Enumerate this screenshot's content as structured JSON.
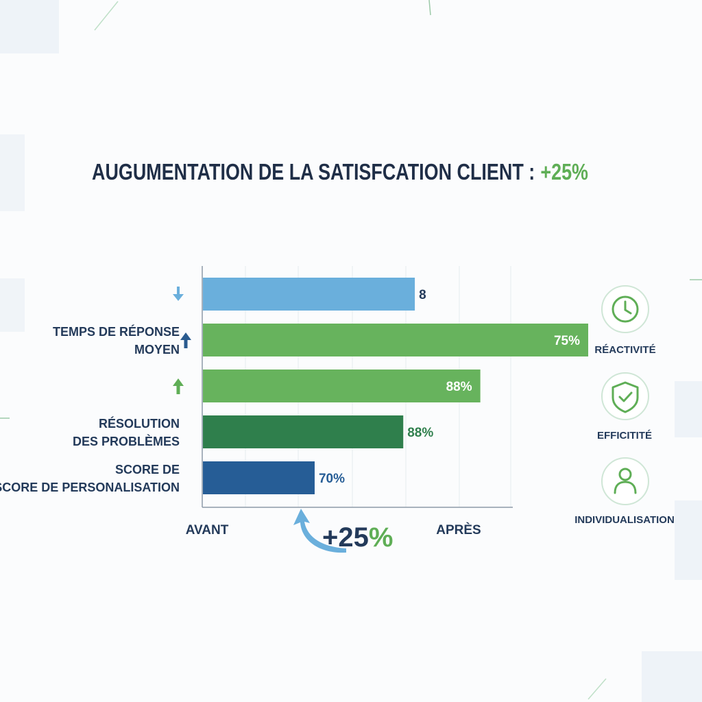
{
  "chart_data": {
    "type": "bar",
    "orientation": "horizontal",
    "title": "AUGUMENTATION DE LA SATISFCATION CLIENT :",
    "title_highlight": "+25%",
    "categories": [
      "",
      "TEMPS DE RÉPONSE MOYEN",
      "",
      "RÉSOLUTION DES PROBLÈMES",
      "SCORE DE SCORE DE PERSONALISATION"
    ],
    "category_lines": [
      [],
      [
        "TEMPS DE RÉPONSE",
        "MOYEN"
      ],
      [],
      [
        "RÉSOLUTION",
        "DES PROBLÈMES"
      ],
      [
        "SCORE DE",
        "SCORE DE PERSONALISATION"
      ]
    ],
    "bars": [
      {
        "value": 55,
        "label": "8",
        "label_position": "outside",
        "color": "#6aafdc",
        "trend": "down",
        "trend_color": "#6aafdc"
      },
      {
        "value": 100,
        "label": "75%",
        "label_position": "inside",
        "color": "#67b35d",
        "trend": "up",
        "trend_color": "#2a5b8f"
      },
      {
        "value": 72,
        "label": "88%",
        "label_position": "inside",
        "color": "#67b35d",
        "trend": "up",
        "trend_color": "#5fae56"
      },
      {
        "value": 52,
        "label": "88%",
        "label_position": "outside",
        "color": "#2f7f4c",
        "label_color": "#2f7f4c"
      },
      {
        "value": 29,
        "label": "70%",
        "label_position": "outside",
        "color": "#265d96",
        "label_color": "#265d96"
      }
    ],
    "x_labels": {
      "left": "AVANT",
      "right": "APRÈS"
    },
    "xlim": [
      0,
      100
    ],
    "grid": true,
    "annotation": {
      "text_main": "+25",
      "text_pct": "%"
    },
    "side_icons": [
      {
        "icon": "clock-icon",
        "label": "RÉACTIVITÉ"
      },
      {
        "icon": "shield-check-icon",
        "label": "EFFICITITÉ"
      },
      {
        "icon": "user-icon",
        "label": "INDIVIDUALISATION"
      }
    ],
    "colors": {
      "title": "#1f2e47",
      "accent_green": "#5fae56",
      "navy": "#233a5a"
    }
  }
}
